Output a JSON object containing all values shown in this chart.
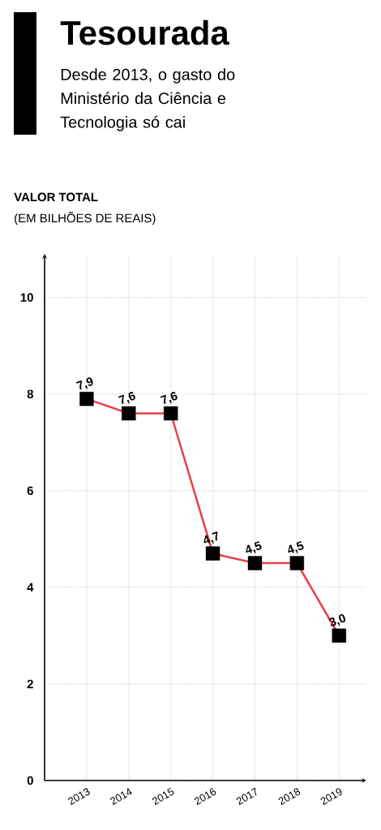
{
  "chart_data": {
    "type": "line",
    "title": "Tesourada",
    "subtitle": "Desde 2013, o gasto do Ministério da Ciência e Tecnologia só cai",
    "annotations": [
      "**VALOR TOTAL**",
      "(EM BILHÕES DE REAIS)"
    ],
    "categories": [
      "2013",
      "2014",
      "2015",
      "2016",
      "2017",
      "2018",
      "2019"
    ],
    "series": [
      {
        "color": "#e8414e",
        "colors": [
          "#000000",
          "#000000",
          "#000000",
          "#000000",
          "#000000",
          "#000000",
          "#000000"
        ],
        "values": [
          7.9,
          7.6,
          7.6,
          4.7,
          4.5,
          4.5,
          3.0
        ],
        "value_labels": [
          "7,9",
          "7,6",
          "7,6",
          "4,7",
          "4,5",
          "4,5",
          "3,0"
        ]
      }
    ],
    "ylim": [
      0,
      10.9
    ],
    "yticks": [
      0,
      2,
      4,
      6,
      8,
      10
    ],
    "grid": true,
    "marker": "square",
    "line_style": "solid"
  }
}
